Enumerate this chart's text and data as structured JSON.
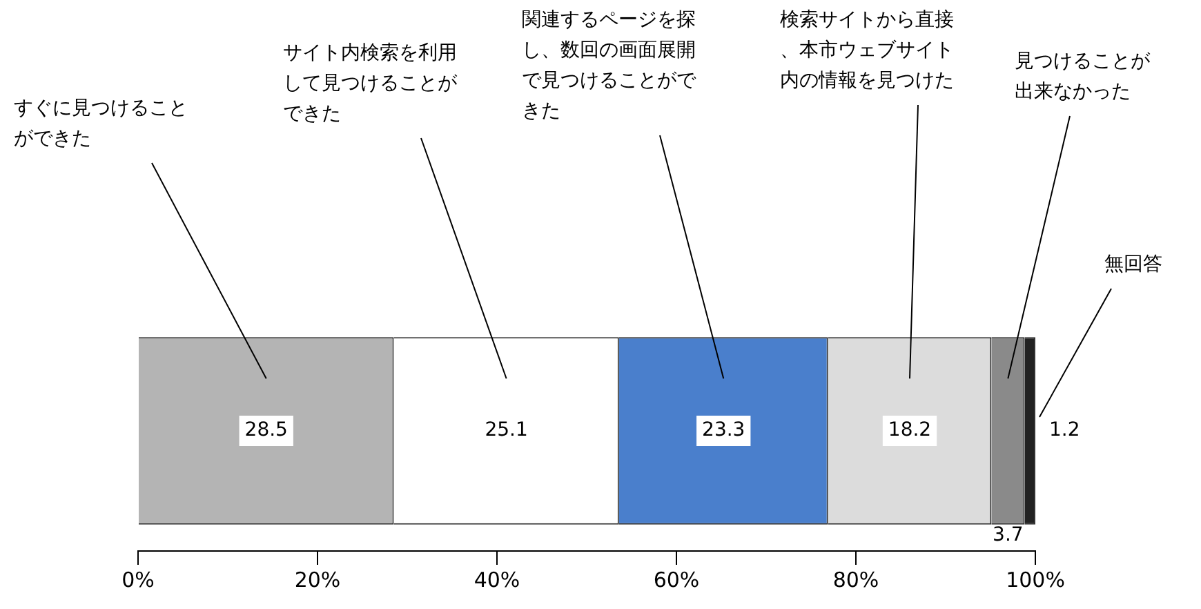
{
  "chart_data": {
    "type": "bar",
    "stacked": true,
    "orientation": "horizontal",
    "categories": [
      null
    ],
    "series": [
      {
        "name": "すぐに見つけることができた",
        "color": "#b4b4b4",
        "values": [
          28.5
        ]
      },
      {
        "name": "サイト内検索を利用して見つけることができた",
        "color": "#ffffff",
        "values": [
          25.1
        ]
      },
      {
        "name": "関連するページを探し、数回の画面展開で見つけることができた",
        "color": "#4a7fcc",
        "values": [
          23.3
        ]
      },
      {
        "name": "検索サイトから直接、本市ウェブサイト内の情報を見つけた",
        "color": "#dcdcdc",
        "values": [
          18.2
        ]
      },
      {
        "name": "見つけることが出来なかった",
        "color": "#8a8a8a",
        "values": [
          3.7
        ]
      },
      {
        "name": "無回答",
        "color": "#222222",
        "values": [
          1.2
        ]
      }
    ],
    "xlim": [
      0,
      100
    ],
    "xticks": [
      {
        "value": 0,
        "label": "0%"
      },
      {
        "value": 20,
        "label": "20%"
      },
      {
        "value": 40,
        "label": "40%"
      },
      {
        "value": 60,
        "label": "60%"
      },
      {
        "value": 80,
        "label": "80%"
      },
      {
        "value": 100,
        "label": "100%"
      }
    ],
    "data_labels": true,
    "legend": false,
    "grid": false,
    "tick_labels": "x"
  }
}
